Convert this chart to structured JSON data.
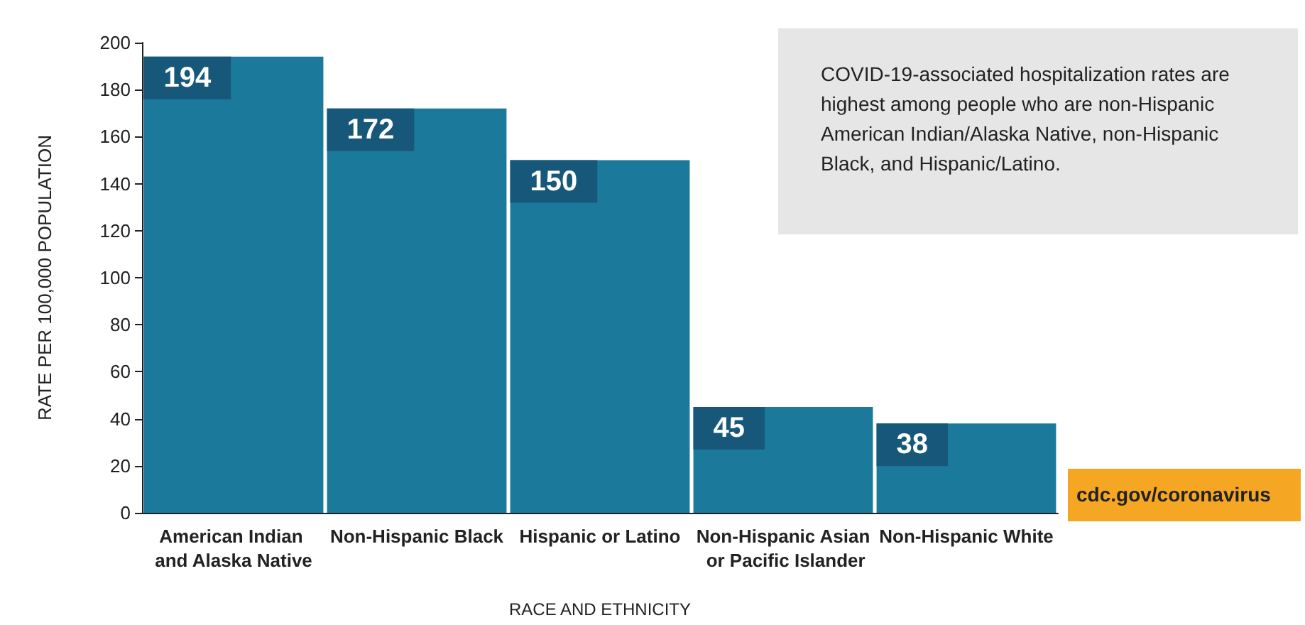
{
  "chart_data": {
    "type": "bar",
    "ylabel": "RATE PER 100,000 POPULATION",
    "xlabel": "RACE AND ETHNICITY",
    "categories": [
      "American Indian and Alaska Native",
      "Non-Hispanic Black",
      "Hispanic or Latino",
      "Non-Hispanic Asian or Pacific Islander",
      "Non-Hispanic White"
    ],
    "values": [
      194,
      172,
      150,
      45,
      38
    ],
    "color": "#1b7a9b",
    "data_labels": true,
    "ylim": [
      0,
      200
    ],
    "yticks": [
      0,
      20,
      40,
      60,
      80,
      100,
      120,
      140,
      160,
      180,
      200
    ],
    "grid": false,
    "annotations": [
      "COVID-19-associated hospitalization rates are highest among people who are non-Hispanic American Indian/Alaska Native, non-Hispanic Black, and Hispanic/Latino.",
      "cdc.gov/coronavirus"
    ]
  }
}
